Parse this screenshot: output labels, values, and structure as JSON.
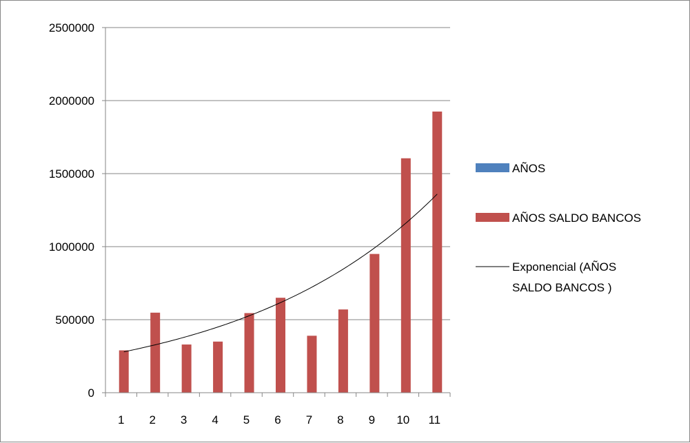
{
  "chart_data": {
    "type": "bar",
    "title": "",
    "xlabel": "",
    "ylabel": "",
    "categories": [
      "1",
      "2",
      "3",
      "4",
      "5",
      "6",
      "7",
      "8",
      "9",
      "10",
      "11"
    ],
    "ylim": [
      0,
      2500000
    ],
    "yticks": [
      "0",
      "500000",
      "1000000",
      "1500000",
      "2000000",
      "2500000"
    ],
    "grid": true,
    "legend_position": "right",
    "series": [
      {
        "name": "AÑOS",
        "values": [
          0,
          0,
          0,
          0,
          0,
          0,
          0,
          0,
          0,
          0,
          0
        ],
        "color": "#4F81BD"
      },
      {
        "name": "AÑOS  SALDO BANCOS",
        "values": [
          290000,
          548000,
          330000,
          350000,
          545000,
          650000,
          390000,
          570000,
          950000,
          1605000,
          1925000
        ],
        "color": "#C0504D"
      }
    ],
    "trendline": {
      "type": "exponential",
      "name_lines": [
        "Exponencial (AÑOS",
        "SALDO BANCOS )"
      ],
      "color": "#000000",
      "start_value": 280000,
      "end_value": 1360000
    }
  }
}
